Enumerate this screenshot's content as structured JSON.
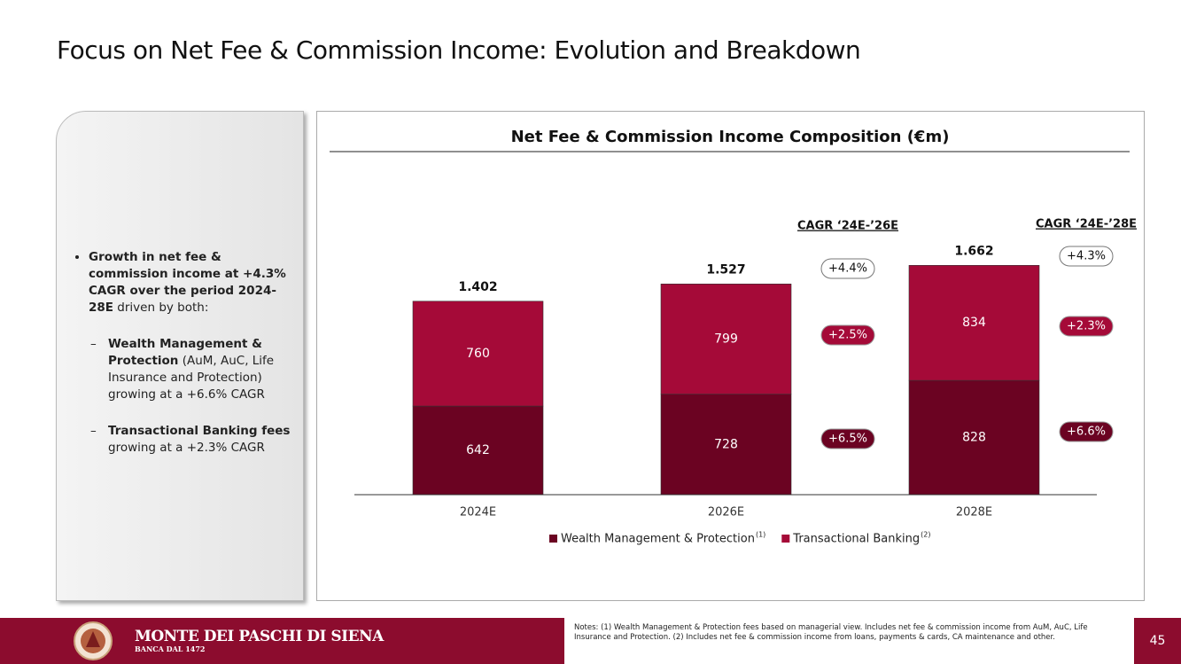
{
  "title": "Focus on Net Fee & Commission Income: Evolution and Breakdown",
  "sidebar": {
    "bullet_bold": "Growth in net fee & commission income at +4.3% CAGR over the period 2024-28E",
    "bullet_rest": " driven by both:",
    "sub_items": [
      {
        "bold": "Wealth Management & Protection",
        "rest": " (AuM, AuC, Life Insurance and Protection) growing at a +6.6% CAGR"
      },
      {
        "bold": "Transactional Banking fees",
        "rest": " growing at a +2.3% CAGR"
      }
    ]
  },
  "chart_data": {
    "type": "stacked_bar",
    "title": "Net Fee & Commission Income Composition (€m)",
    "categories": [
      "2024E",
      "2026E",
      "2028E"
    ],
    "series": [
      {
        "name": "Wealth Management & Protection",
        "ref": "(1)",
        "color": "#6b0322",
        "values": [
          642,
          728,
          828
        ]
      },
      {
        "name": "Transactional Banking",
        "ref": "(2)",
        "color": "#a50a38",
        "values": [
          760,
          799,
          834
        ]
      }
    ],
    "totals": {
      "values": [
        1402,
        1527,
        1662
      ],
      "value_labels": [
        "1.402",
        "1.527",
        "1.662"
      ]
    },
    "ylim": [
      0,
      2300
    ],
    "cagr": [
      {
        "label": "CAGR ‘24E-’26E",
        "total": "+4.4%",
        "series": [
          "+6.5%",
          "+2.5%"
        ]
      },
      {
        "label": "CAGR ‘24E-’28E",
        "total": "+4.3%",
        "series": [
          "+6.6%",
          "+2.3%"
        ]
      }
    ]
  },
  "footer": {
    "brand": "MONTE DEI PASCHI DI SIENA",
    "tagline": "BANCA DAL 1472",
    "notes": "Notes: (1) Wealth Management & Protection fees based on managerial view. Includes net fee & commission income from AuM, AuC, Life Insurance and Protection. (2) Includes net fee & commission income from loans, payments & cards, CA maintenance and other.",
    "page": "45"
  }
}
